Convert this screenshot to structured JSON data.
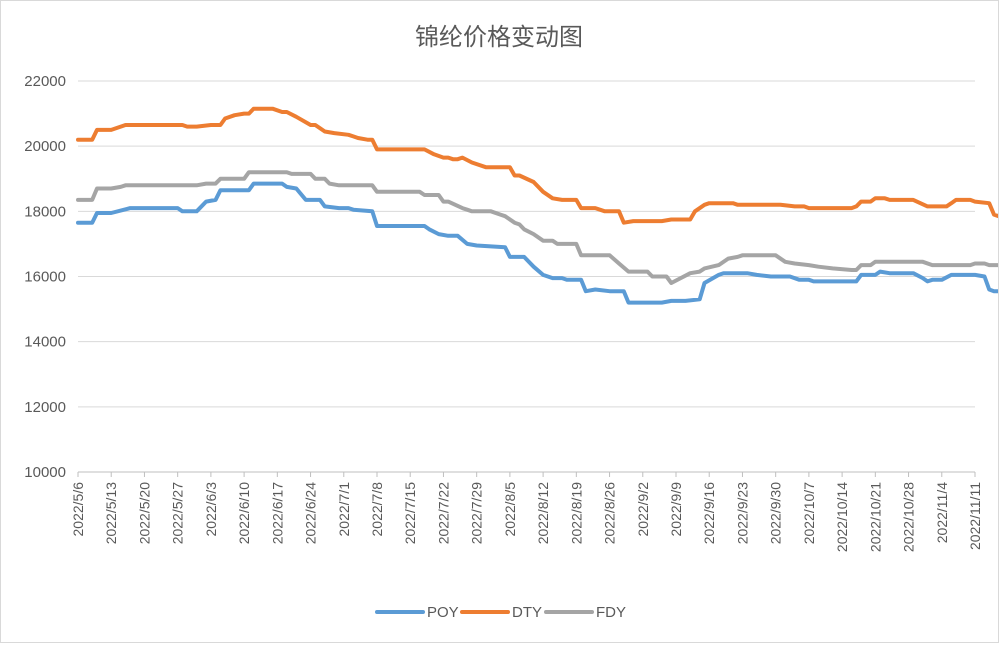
{
  "chart_data": {
    "type": "line",
    "title": "锦纶价格变动图",
    "xlabel": "",
    "ylabel": "",
    "ylim": [
      10000,
      22000
    ],
    "yticks": [
      "10000",
      "12000",
      "14000",
      "16000",
      "18000",
      "20000",
      "22000"
    ],
    "xticks": [
      "2022/5/6",
      "2022/5/13",
      "2022/5/20",
      "2022/5/27",
      "2022/6/3",
      "2022/6/10",
      "2022/6/17",
      "2022/6/24",
      "2022/7/1",
      "2022/7/8",
      "2022/7/15",
      "2022/7/22",
      "2022/7/29",
      "2022/8/5",
      "2022/8/12",
      "2022/8/19",
      "2022/8/26",
      "2022/9/2",
      "2022/9/9",
      "2022/9/16",
      "2022/9/23",
      "2022/9/30",
      "2022/10/7",
      "2022/10/14",
      "2022/10/21",
      "2022/10/28",
      "2022/11/4",
      "2022/11/11"
    ],
    "x_range": [
      "2022/5/6",
      "2022/11/11"
    ],
    "grid": true,
    "legend_position": "bottom",
    "series": [
      {
        "name": "POY",
        "color": "#5b9bd5",
        "points": [
          [
            "2022/5/6",
            17650
          ],
          [
            "2022/5/9",
            17650
          ],
          [
            "2022/5/10",
            17950
          ],
          [
            "2022/5/13",
            17950
          ],
          [
            "2022/5/17",
            18100
          ],
          [
            "2022/5/27",
            18100
          ],
          [
            "2022/5/28",
            18000
          ],
          [
            "2022/5/31",
            18000
          ],
          [
            "2022/6/2",
            18300
          ],
          [
            "2022/6/4",
            18350
          ],
          [
            "2022/6/5",
            18650
          ],
          [
            "2022/6/11",
            18650
          ],
          [
            "2022/6/12",
            18850
          ],
          [
            "2022/6/18",
            18850
          ],
          [
            "2022/6/19",
            18750
          ],
          [
            "2022/6/21",
            18700
          ],
          [
            "2022/6/23",
            18350
          ],
          [
            "2022/6/26",
            18350
          ],
          [
            "2022/6/27",
            18150
          ],
          [
            "2022/6/30",
            18100
          ],
          [
            "2022/7/2",
            18100
          ],
          [
            "2022/7/3",
            18050
          ],
          [
            "2022/7/7",
            18000
          ],
          [
            "2022/7/8",
            17550
          ],
          [
            "2022/7/18",
            17550
          ],
          [
            "2022/7/19",
            17450
          ],
          [
            "2022/7/21",
            17300
          ],
          [
            "2022/7/23",
            17250
          ],
          [
            "2022/7/25",
            17250
          ],
          [
            "2022/7/27",
            17000
          ],
          [
            "2022/7/29",
            16950
          ],
          [
            "2022/8/4",
            16900
          ],
          [
            "2022/8/5",
            16600
          ],
          [
            "2022/8/8",
            16600
          ],
          [
            "2022/8/10",
            16300
          ],
          [
            "2022/8/12",
            16050
          ],
          [
            "2022/8/14",
            15950
          ],
          [
            "2022/8/16",
            15950
          ],
          [
            "2022/8/17",
            15900
          ],
          [
            "2022/8/20",
            15900
          ],
          [
            "2022/8/21",
            15550
          ],
          [
            "2022/8/23",
            15600
          ],
          [
            "2022/8/26",
            15550
          ],
          [
            "2022/8/29",
            15550
          ],
          [
            "2022/8/30",
            15200
          ],
          [
            "2022/9/6",
            15200
          ],
          [
            "2022/9/8",
            15250
          ],
          [
            "2022/9/11",
            15250
          ],
          [
            "2022/9/14",
            15300
          ],
          [
            "2022/9/15",
            15800
          ],
          [
            "2022/9/18",
            16050
          ],
          [
            "2022/9/19",
            16100
          ],
          [
            "2022/9/24",
            16100
          ],
          [
            "2022/9/26",
            16050
          ],
          [
            "2022/9/29",
            16000
          ],
          [
            "2022/10/3",
            16000
          ],
          [
            "2022/10/5",
            15900
          ],
          [
            "2022/10/7",
            15900
          ],
          [
            "2022/10/8",
            15850
          ],
          [
            "2022/10/15",
            15850
          ],
          [
            "2022/10/17",
            15850
          ],
          [
            "2022/10/18",
            16050
          ],
          [
            "2022/10/21",
            16050
          ],
          [
            "2022/10/22",
            16150
          ],
          [
            "2022/10/24",
            16100
          ],
          [
            "2022/10/29",
            16100
          ],
          [
            "2022/10/31",
            15950
          ],
          [
            "2022/11/1",
            15850
          ],
          [
            "2022/11/2",
            15900
          ],
          [
            "2022/11/4",
            15900
          ],
          [
            "2022/11/6",
            16050
          ],
          [
            "2022/11/11",
            16050
          ],
          [
            "2022/11/13",
            16000
          ],
          [
            "2022/11/14",
            15600
          ],
          [
            "2022/11/15",
            15550
          ],
          [
            "2022/11/17",
            15550
          ]
        ]
      },
      {
        "name": "DTY",
        "color": "#ed7d31",
        "points": [
          [
            "2022/5/6",
            20200
          ],
          [
            "2022/5/9",
            20200
          ],
          [
            "2022/5/10",
            20500
          ],
          [
            "2022/5/13",
            20500
          ],
          [
            "2022/5/16",
            20650
          ],
          [
            "2022/5/28",
            20650
          ],
          [
            "2022/5/29",
            20600
          ],
          [
            "2022/5/31",
            20600
          ],
          [
            "2022/6/3",
            20650
          ],
          [
            "2022/6/5",
            20650
          ],
          [
            "2022/6/6",
            20850
          ],
          [
            "2022/6/8",
            20950
          ],
          [
            "2022/6/10",
            21000
          ],
          [
            "2022/6/11",
            21000
          ],
          [
            "2022/6/12",
            21150
          ],
          [
            "2022/6/16",
            21150
          ],
          [
            "2022/6/18",
            21050
          ],
          [
            "2022/6/19",
            21050
          ],
          [
            "2022/6/21",
            20900
          ],
          [
            "2022/6/24",
            20650
          ],
          [
            "2022/6/25",
            20650
          ],
          [
            "2022/6/27",
            20450
          ],
          [
            "2022/6/29",
            20400
          ],
          [
            "2022/7/2",
            20350
          ],
          [
            "2022/7/3",
            20300
          ],
          [
            "2022/7/4",
            20250
          ],
          [
            "2022/7/6",
            20200
          ],
          [
            "2022/7/7",
            20200
          ],
          [
            "2022/7/8",
            19900
          ],
          [
            "2022/7/18",
            19900
          ],
          [
            "2022/7/20",
            19750
          ],
          [
            "2022/7/22",
            19650
          ],
          [
            "2022/7/23",
            19650
          ],
          [
            "2022/7/24",
            19600
          ],
          [
            "2022/7/25",
            19600
          ],
          [
            "2022/7/26",
            19650
          ],
          [
            "2022/7/28",
            19500
          ],
          [
            "2022/7/31",
            19350
          ],
          [
            "2022/8/5",
            19350
          ],
          [
            "2022/8/6",
            19100
          ],
          [
            "2022/8/7",
            19100
          ],
          [
            "2022/8/10",
            18900
          ],
          [
            "2022/8/12",
            18600
          ],
          [
            "2022/8/14",
            18400
          ],
          [
            "2022/8/16",
            18350
          ],
          [
            "2022/8/18",
            18350
          ],
          [
            "2022/8/19",
            18350
          ],
          [
            "2022/8/20",
            18100
          ],
          [
            "2022/8/23",
            18100
          ],
          [
            "2022/8/25",
            18000
          ],
          [
            "2022/8/28",
            18000
          ],
          [
            "2022/8/29",
            17650
          ],
          [
            "2022/8/31",
            17700
          ],
          [
            "2022/9/6",
            17700
          ],
          [
            "2022/9/8",
            17750
          ],
          [
            "2022/9/12",
            17750
          ],
          [
            "2022/9/13",
            18000
          ],
          [
            "2022/9/15",
            18200
          ],
          [
            "2022/9/16",
            18250
          ],
          [
            "2022/9/21",
            18250
          ],
          [
            "2022/9/22",
            18200
          ],
          [
            "2022/10/1",
            18200
          ],
          [
            "2022/10/4",
            18150
          ],
          [
            "2022/10/6",
            18150
          ],
          [
            "2022/10/7",
            18100
          ],
          [
            "2022/10/16",
            18100
          ],
          [
            "2022/10/17",
            18150
          ],
          [
            "2022/10/18",
            18300
          ],
          [
            "2022/10/20",
            18300
          ],
          [
            "2022/10/21",
            18400
          ],
          [
            "2022/10/23",
            18400
          ],
          [
            "2022/10/24",
            18350
          ],
          [
            "2022/10/29",
            18350
          ],
          [
            "2022/11/1",
            18150
          ],
          [
            "2022/11/5",
            18150
          ],
          [
            "2022/11/6",
            18250
          ],
          [
            "2022/11/7",
            18350
          ],
          [
            "2022/11/10",
            18350
          ],
          [
            "2022/11/11",
            18300
          ],
          [
            "2022/11/14",
            18250
          ],
          [
            "2022/11/15",
            17900
          ],
          [
            "2022/11/16",
            17850
          ],
          [
            "2022/11/17",
            17850
          ]
        ]
      },
      {
        "name": "FDY",
        "color": "#a5a5a5",
        "points": [
          [
            "2022/5/6",
            18350
          ],
          [
            "2022/5/9",
            18350
          ],
          [
            "2022/5/10",
            18700
          ],
          [
            "2022/5/13",
            18700
          ],
          [
            "2022/5/15",
            18750
          ],
          [
            "2022/5/16",
            18800
          ],
          [
            "2022/5/31",
            18800
          ],
          [
            "2022/6/2",
            18850
          ],
          [
            "2022/6/4",
            18850
          ],
          [
            "2022/6/5",
            19000
          ],
          [
            "2022/6/10",
            19000
          ],
          [
            "2022/6/11",
            19200
          ],
          [
            "2022/6/19",
            19200
          ],
          [
            "2022/6/20",
            19150
          ],
          [
            "2022/6/24",
            19150
          ],
          [
            "2022/6/25",
            19000
          ],
          [
            "2022/6/27",
            19000
          ],
          [
            "2022/6/28",
            18850
          ],
          [
            "2022/6/30",
            18800
          ],
          [
            "2022/7/7",
            18800
          ],
          [
            "2022/7/8",
            18600
          ],
          [
            "2022/7/17",
            18600
          ],
          [
            "2022/7/18",
            18500
          ],
          [
            "2022/7/21",
            18500
          ],
          [
            "2022/7/22",
            18300
          ],
          [
            "2022/7/23",
            18300
          ],
          [
            "2022/7/26",
            18100
          ],
          [
            "2022/7/27",
            18050
          ],
          [
            "2022/7/28",
            18000
          ],
          [
            "2022/8/1",
            18000
          ],
          [
            "2022/8/3",
            17900
          ],
          [
            "2022/8/4",
            17850
          ],
          [
            "2022/8/6",
            17650
          ],
          [
            "2022/8/7",
            17600
          ],
          [
            "2022/8/8",
            17450
          ],
          [
            "2022/8/10",
            17300
          ],
          [
            "2022/8/12",
            17100
          ],
          [
            "2022/8/14",
            17100
          ],
          [
            "2022/8/15",
            17000
          ],
          [
            "2022/8/19",
            17000
          ],
          [
            "2022/8/20",
            16650
          ],
          [
            "2022/8/26",
            16650
          ],
          [
            "2022/8/28",
            16400
          ],
          [
            "2022/8/30",
            16150
          ],
          [
            "2022/9/3",
            16150
          ],
          [
            "2022/9/4",
            16000
          ],
          [
            "2022/9/7",
            16000
          ],
          [
            "2022/9/8",
            15800
          ],
          [
            "2022/9/10",
            15950
          ],
          [
            "2022/9/12",
            16100
          ],
          [
            "2022/9/14",
            16150
          ],
          [
            "2022/9/15",
            16250
          ],
          [
            "2022/9/18",
            16350
          ],
          [
            "2022/9/20",
            16550
          ],
          [
            "2022/9/22",
            16600
          ],
          [
            "2022/9/23",
            16650
          ],
          [
            "2022/9/30",
            16650
          ],
          [
            "2022/10/2",
            16450
          ],
          [
            "2022/10/4",
            16400
          ],
          [
            "2022/10/7",
            16350
          ],
          [
            "2022/10/9",
            16300
          ],
          [
            "2022/10/12",
            16250
          ],
          [
            "2022/10/16",
            16200
          ],
          [
            "2022/10/17",
            16200
          ],
          [
            "2022/10/18",
            16350
          ],
          [
            "2022/10/20",
            16350
          ],
          [
            "2022/10/21",
            16450
          ],
          [
            "2022/10/31",
            16450
          ],
          [
            "2022/11/2",
            16350
          ],
          [
            "2022/11/10",
            16350
          ],
          [
            "2022/11/11",
            16400
          ],
          [
            "2022/11/13",
            16400
          ],
          [
            "2022/11/14",
            16350
          ],
          [
            "2022/11/17",
            16350
          ],
          [
            "2022/11/18",
            16050
          ],
          [
            "2022/11/20",
            16050
          ]
        ]
      }
    ]
  }
}
